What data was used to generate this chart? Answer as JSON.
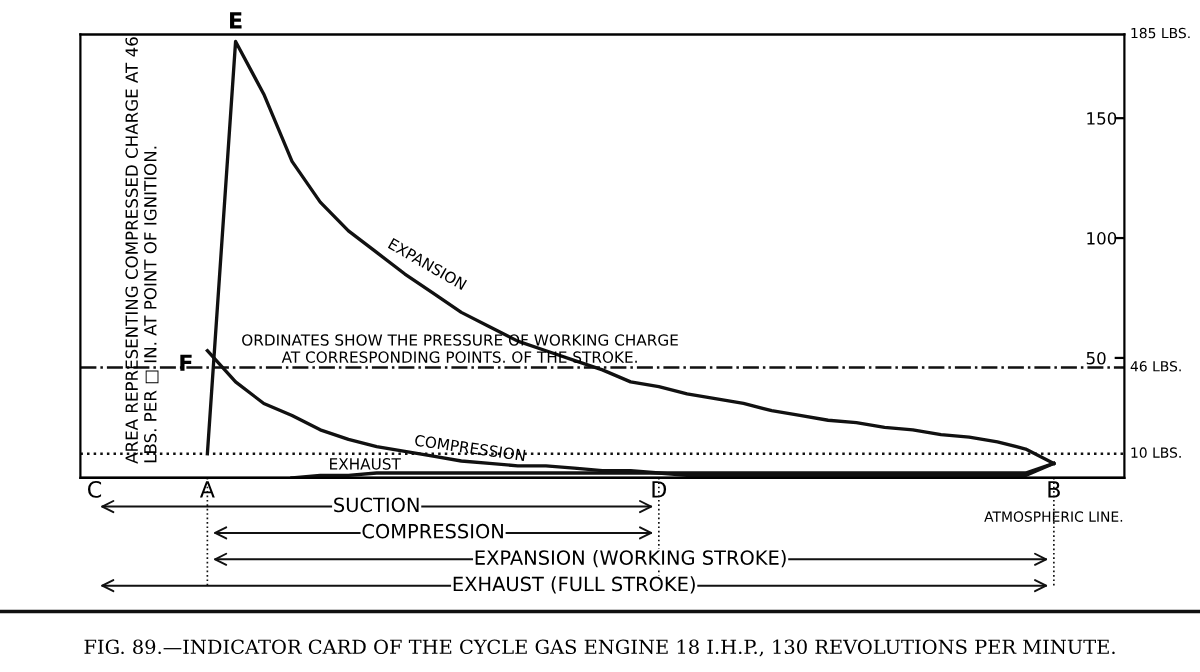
{
  "chart_data": {
    "type": "line",
    "title": "FIG. 89.—INDICATOR CARD OF THE CYCLE GAS ENGINE 18 I.H.P., 130 REVOLUTIONS PER MINUTE.",
    "categories": [
      "C",
      null,
      null,
      null,
      "A",
      null,
      null,
      null,
      null,
      null,
      null,
      null,
      null,
      null,
      null,
      null,
      null,
      null,
      null,
      null,
      "D",
      null,
      null,
      null,
      null,
      null,
      null,
      null,
      null,
      null,
      null,
      null,
      null,
      null,
      "B",
      null,
      null
    ],
    "series": [
      {
        "name": "EXPANSION",
        "color": "#111111",
        "values": [
          null,
          null,
          null,
          null,
          10,
          182,
          160,
          132,
          115,
          103,
          94,
          85,
          77,
          69,
          63,
          57,
          53,
          49,
          45,
          40,
          38,
          35,
          33,
          31,
          28,
          26,
          24,
          23,
          21,
          20,
          18,
          17,
          15,
          12,
          6,
          null,
          null
        ]
      },
      {
        "name": "COMPRESSION",
        "color": "#111111",
        "values": [
          null,
          null,
          null,
          null,
          53,
          40,
          31,
          26,
          20,
          16,
          13,
          11,
          9,
          7,
          6,
          5,
          5,
          4,
          3,
          3,
          2,
          2,
          2,
          2,
          2,
          2,
          2,
          2,
          2,
          2,
          2,
          2,
          2,
          2,
          6,
          null,
          null
        ]
      },
      {
        "name": "EXHAUST",
        "color": "#111111",
        "values": [
          null,
          null,
          null,
          null,
          null,
          null,
          null,
          0,
          1,
          1,
          2,
          2,
          2,
          2,
          2,
          2,
          2,
          2,
          2,
          2,
          2,
          1,
          1,
          1,
          1,
          1,
          1,
          1,
          1,
          1,
          1,
          1,
          1,
          1,
          6,
          null,
          null
        ]
      }
    ],
    "ylim": [
      0,
      185
    ],
    "yticks": [
      50,
      100,
      150
    ],
    "ref_lines": [
      {
        "axis": "y",
        "value": 185,
        "label": "185 LBS."
      },
      {
        "axis": "y",
        "value": 46,
        "label": "46 LBS.",
        "line_style": "dashed"
      },
      {
        "axis": "y",
        "value": 10,
        "label": "10 LBS.",
        "line_style": "dotted"
      },
      {
        "axis": "y",
        "value": 0,
        "label": "ATMOSPHERIC LINE."
      }
    ],
    "annotations": [
      {
        "text": "E",
        "y": 182
      },
      {
        "text": "F",
        "x": "A",
        "y": 46
      },
      "AREA REPRESENTING COMPRESSED CHARGE AT 46 LBS. PER □ IN. AT POINT OF IGNITION.",
      "ORDINATES SHOW THE PRESSURE OF WORKING CHARGE AT CORRESPONDING POINTS. OF THE STROKE.",
      "SUCTION",
      "COMPRESSION",
      "EXPANSION (WORKING STROKE)",
      "EXHAUST (FULL STROKE)"
    ],
    "grid": false,
    "legend": false,
    "marker": "none",
    "line_style": "solid"
  }
}
